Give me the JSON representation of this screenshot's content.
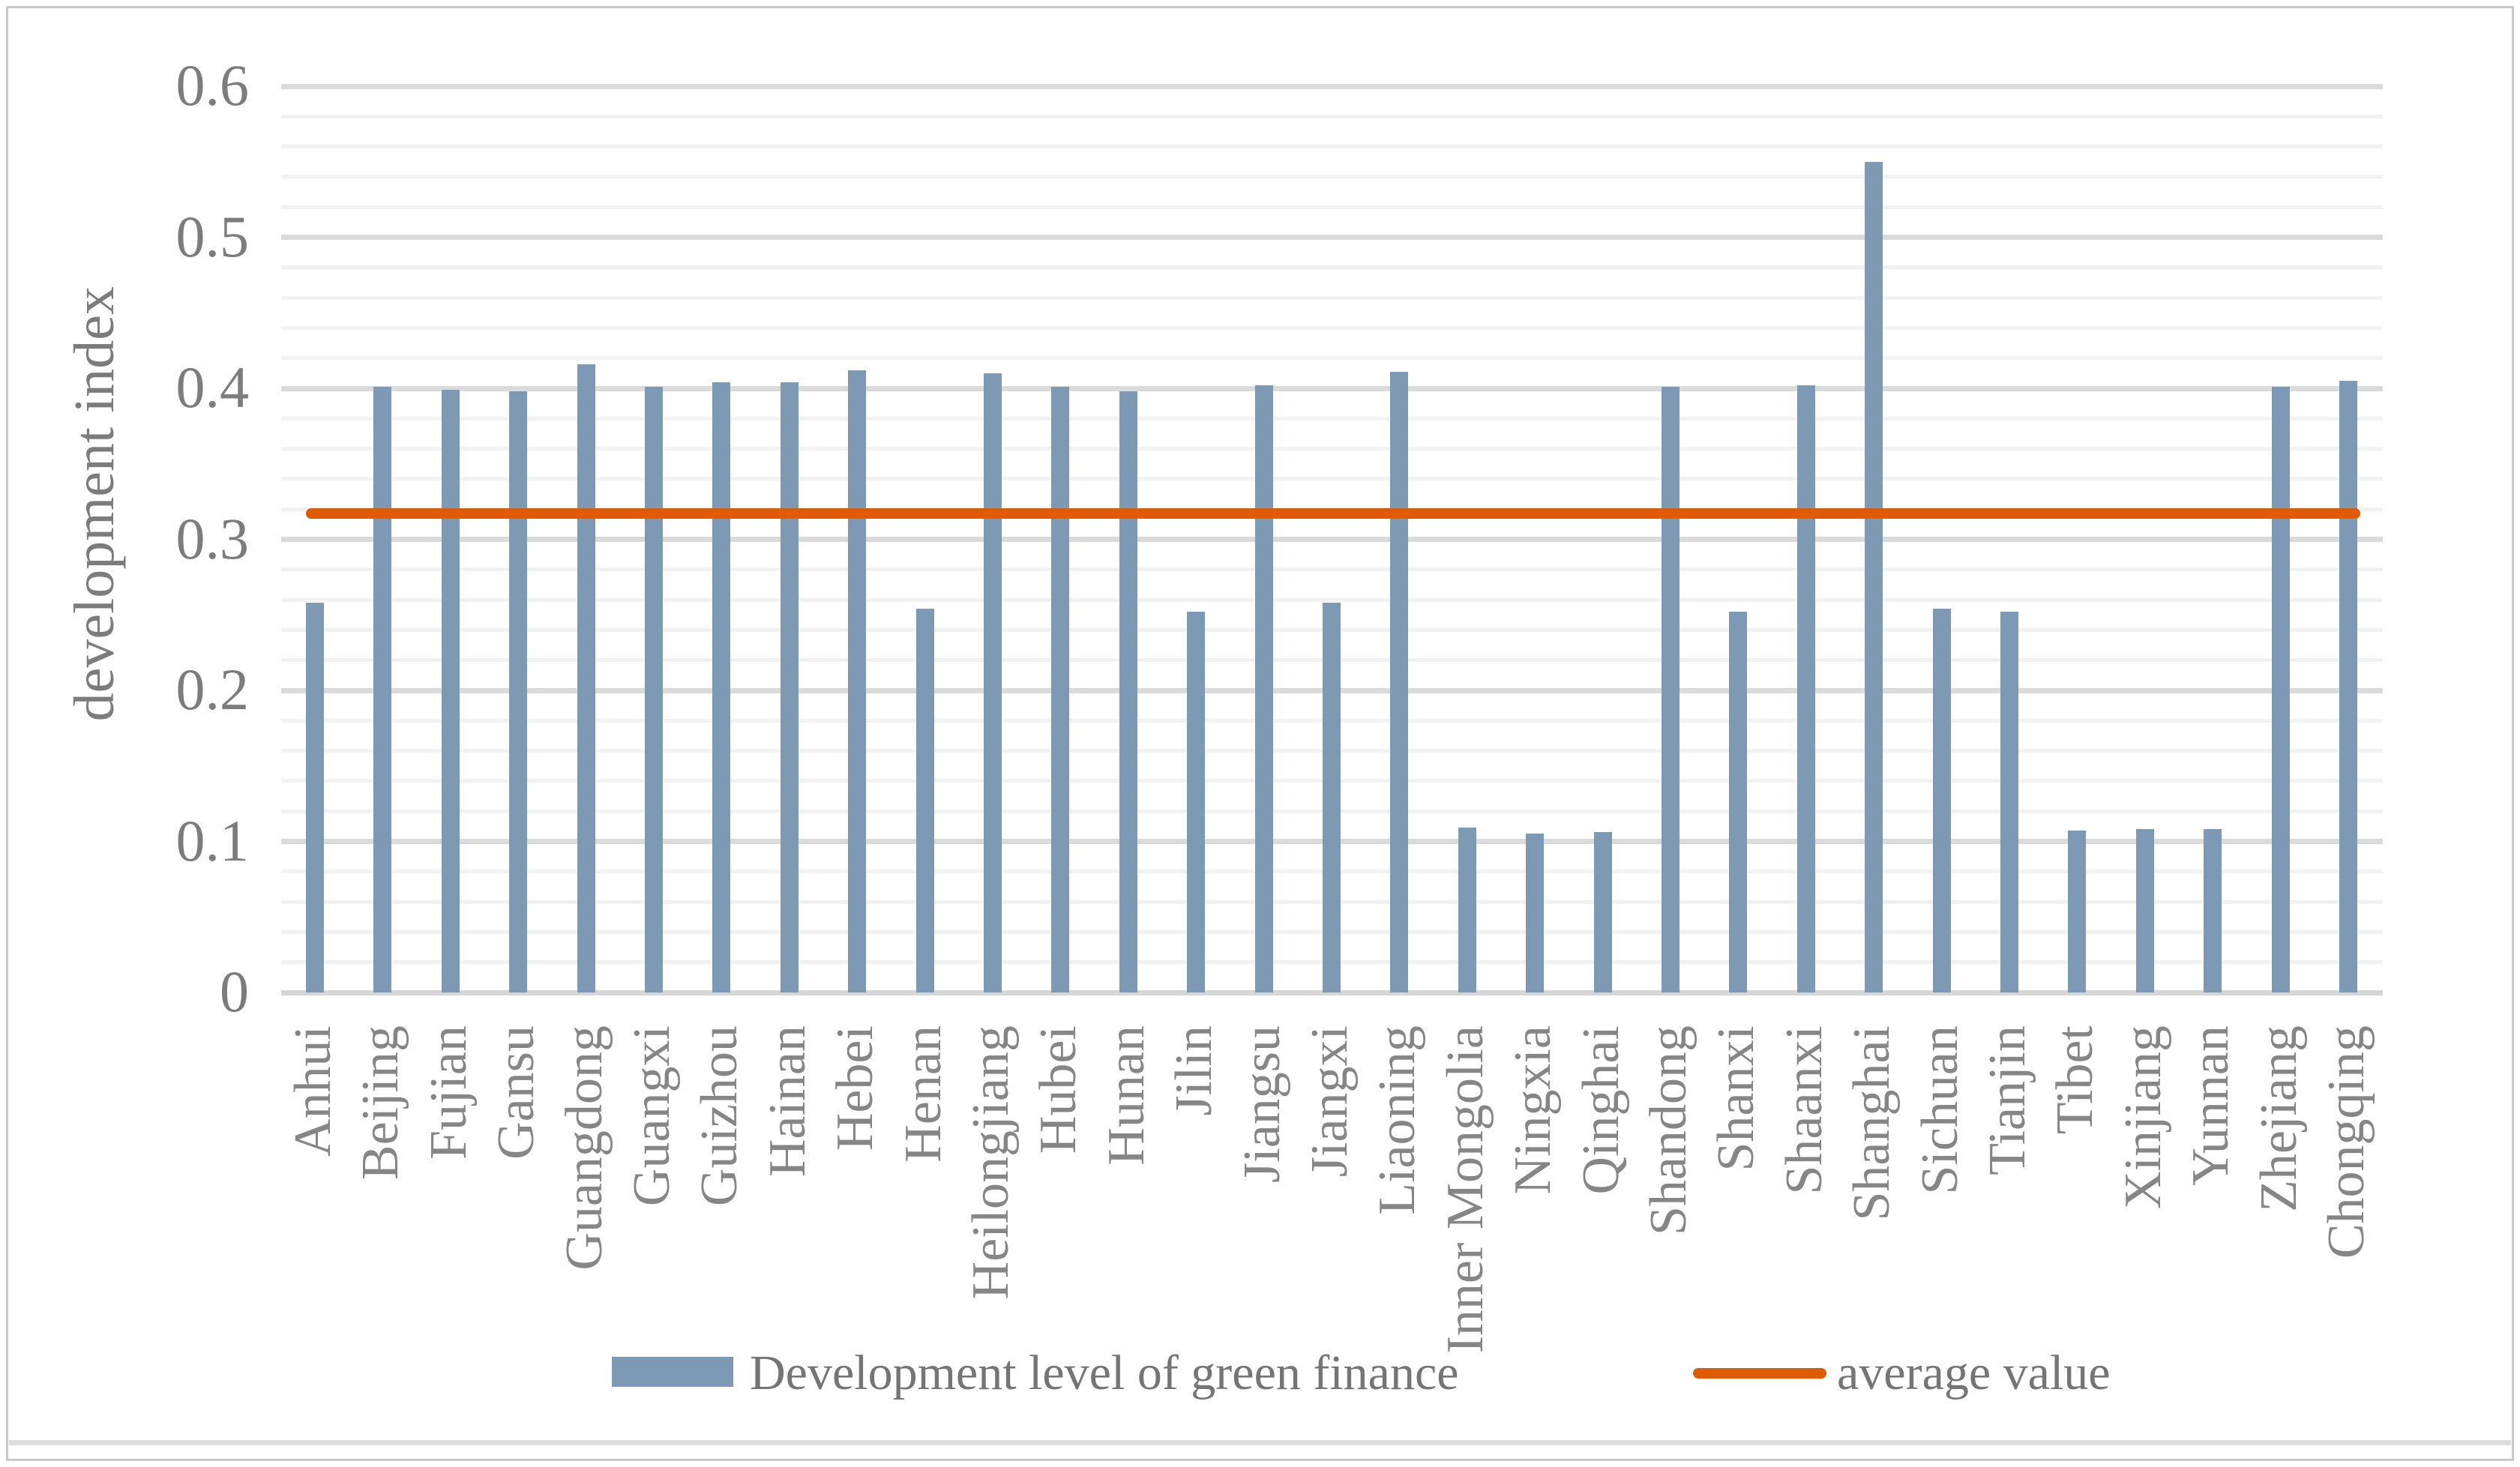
{
  "chart_data": {
    "type": "bar",
    "title": "",
    "xlabel": "",
    "ylabel": "development index",
    "categories": [
      "Anhui",
      "Beijing",
      "Fujian",
      "Gansu",
      "Guangdong",
      "Guangxi",
      "Guizhou",
      "Hainan",
      "Hebei",
      "Henan",
      "Heilongjiang",
      "Hubei",
      "Hunan",
      "Jilin",
      "Jiangsu",
      "Jiangxi",
      "Liaoning",
      "Inner Mongolia",
      "Ningxia",
      "Qinghai",
      "Shandong",
      "Shanxi",
      "Shaanxi",
      "Shanghai",
      "Sichuan",
      "Tianjin",
      "Tibet",
      "Xinjiang",
      "Yunnan",
      "Zhejiang",
      "Chongqing"
    ],
    "series": [
      {
        "name": "Development level of green finance",
        "type": "bar",
        "color": "#7d99b3",
        "values": [
          0.258,
          0.401,
          0.399,
          0.398,
          0.416,
          0.401,
          0.404,
          0.404,
          0.412,
          0.254,
          0.41,
          0.401,
          0.398,
          0.252,
          0.402,
          0.258,
          0.411,
          0.109,
          0.105,
          0.106,
          0.401,
          0.252,
          0.402,
          0.55,
          0.254,
          0.252,
          0.107,
          0.108,
          0.108,
          0.401,
          0.405
        ]
      },
      {
        "name": "average value",
        "type": "line",
        "color": "#e05a00",
        "value": 0.317
      }
    ],
    "ylim": [
      0,
      0.6
    ],
    "y_ticks": [
      "0",
      "0.1",
      "0.2",
      "0.3",
      "0.4",
      "0.5",
      "0.6"
    ],
    "y_tick_values": [
      0,
      0.1,
      0.2,
      0.3,
      0.4,
      0.5,
      0.6
    ],
    "minor_grid_step": 0.02,
    "grid": "on",
    "legend_position": "bottom",
    "colors": {
      "bar": "#7d99b3",
      "average_line": "#e05a00",
      "major_grid": "#dbdbdb",
      "minor_grid": "#f2f2f2",
      "axis_line": "#d6d6d6",
      "label_text": "#7c7c7c"
    }
  },
  "legend": {
    "bars_label": "Development level of green finance",
    "line_label": "average value"
  }
}
